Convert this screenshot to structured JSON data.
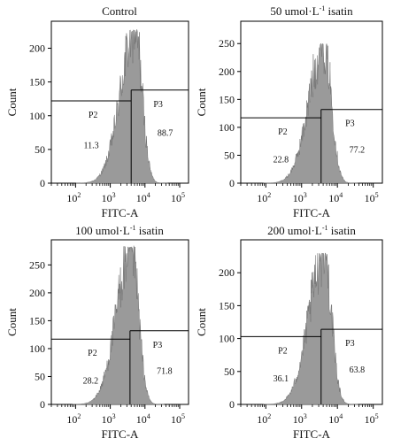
{
  "chart_data": [
    {
      "type": "histogram",
      "title": "Control",
      "xlabel": "FITC-A",
      "ylabel": "Count",
      "x_scale": "log",
      "xlim": [
        20,
        180000
      ],
      "x_ticks": [
        100,
        1000,
        10000,
        100000
      ],
      "ylim": [
        0,
        240
      ],
      "y_ticks": [
        0,
        50,
        100,
        150,
        200
      ],
      "peak": {
        "x": 5200,
        "count": 228
      },
      "gate_boundary_x": 4000,
      "gates": [
        {
          "name": "P2",
          "y_level": 122,
          "percent": "11.3"
        },
        {
          "name": "P3",
          "y_level": 138,
          "percent": "88.7"
        }
      ]
    },
    {
      "type": "histogram",
      "title": "50 umol·L-1 isatin",
      "xlabel": "FITC-A",
      "ylabel": "Count",
      "x_scale": "log",
      "xlim": [
        20,
        180000
      ],
      "x_ticks": [
        100,
        1000,
        10000,
        100000
      ],
      "ylim": [
        0,
        290
      ],
      "y_ticks": [
        0,
        50,
        100,
        150,
        200,
        250
      ],
      "peak": {
        "x": 4300,
        "count": 250
      },
      "gate_boundary_x": 3500,
      "gates": [
        {
          "name": "P2",
          "y_level": 117,
          "percent": "22.8"
        },
        {
          "name": "P3",
          "y_level": 132,
          "percent": "77.2"
        }
      ]
    },
    {
      "type": "histogram",
      "title": "100 umol·L-1 isatin",
      "xlabel": "FITC-A",
      "ylabel": "Count",
      "x_scale": "log",
      "xlim": [
        20,
        180000
      ],
      "x_ticks": [
        100,
        1000,
        10000,
        100000
      ],
      "ylim": [
        0,
        295
      ],
      "y_ticks": [
        0,
        50,
        100,
        150,
        200,
        250
      ],
      "peak": {
        "x": 4100,
        "count": 285
      },
      "gate_boundary_x": 3700,
      "gates": [
        {
          "name": "P2",
          "y_level": 117,
          "percent": "28.2"
        },
        {
          "name": "P3",
          "y_level": 132,
          "percent": "71.8"
        }
      ]
    },
    {
      "type": "histogram",
      "title": "200 umol·L-1 isatin",
      "xlabel": "FITC-A",
      "ylabel": "Count",
      "x_scale": "log",
      "xlim": [
        20,
        180000
      ],
      "x_ticks": [
        100,
        1000,
        10000,
        100000
      ],
      "ylim": [
        0,
        250
      ],
      "y_ticks": [
        0,
        50,
        100,
        150,
        200
      ],
      "peak": {
        "x": 4300,
        "count": 230
      },
      "gate_boundary_x": 3500,
      "gates": [
        {
          "name": "P2",
          "y_level": 103,
          "percent": "36.1"
        },
        {
          "name": "P3",
          "y_level": 114,
          "percent": "63.8"
        }
      ]
    }
  ],
  "colors": {
    "histogram_fill": "#9a9a9a",
    "histogram_edge": "#707070",
    "axis": "#000000",
    "gate_line": "#000000",
    "background": "#ffffff"
  }
}
